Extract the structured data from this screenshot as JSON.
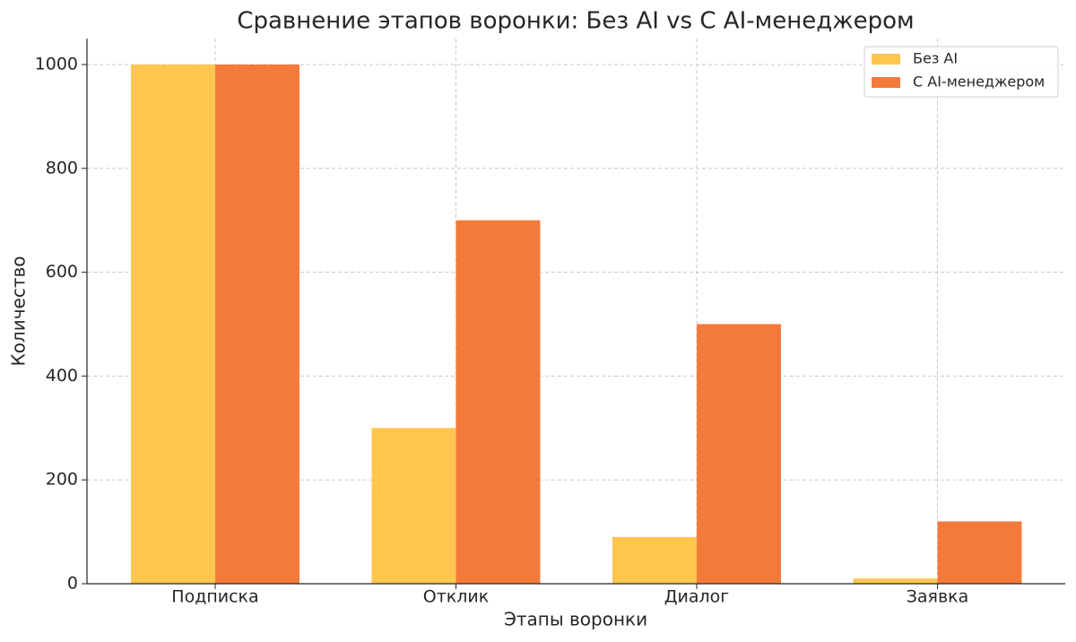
{
  "chart_data": {
    "type": "bar",
    "title": "Сравнение этапов воронки: Без AI vs С AI-менеджером",
    "x_label": "Этапы воронки",
    "y_label": "Количество",
    "categories": [
      "Подписка",
      "Отклик",
      "Диалог",
      "Заявка"
    ],
    "series": [
      {
        "name": "Без AI",
        "color": "#fcc64f",
        "values": [
          1000,
          300,
          90,
          10
        ]
      },
      {
        "name": "С AI-менеджером",
        "color": "#f47a3a",
        "values": [
          1000,
          700,
          500,
          120
        ]
      }
    ],
    "ylim": [
      0,
      1050
    ],
    "yticks": [
      0,
      200,
      400,
      600,
      800,
      1000
    ],
    "grid": true,
    "legend": "upper right"
  }
}
